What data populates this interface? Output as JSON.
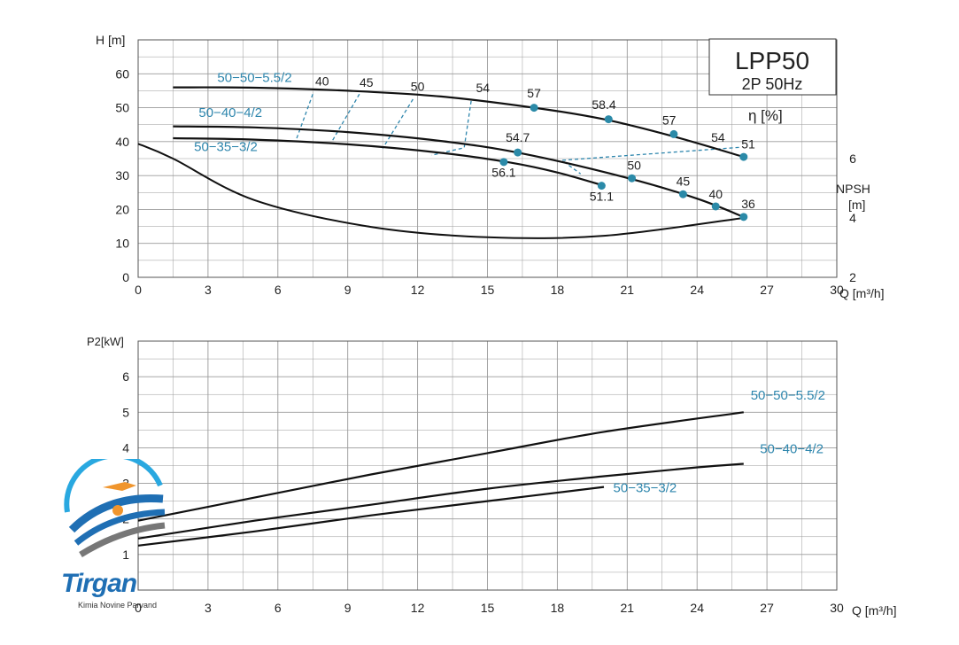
{
  "colors": {
    "curve": "#111111",
    "label": "#2e86ad",
    "grid": "#9a9a9a",
    "dot": "#2b8aa8",
    "efficiency_line": "#2e86ad"
  },
  "chart_data": [
    {
      "type": "line",
      "title": "LPP50",
      "subtitle": "2P  50Hz",
      "ylabel": "H [m]",
      "y2label_efficiency": "η [%]",
      "y3label": "NPSH",
      "y3unit": "[m]",
      "xlabel": "Q [m³/h]",
      "xlim": [
        0,
        30
      ],
      "ylim": [
        0,
        70
      ],
      "xticks": [
        "0",
        "3",
        "6",
        "9",
        "12",
        "15",
        "18",
        "21",
        "24",
        "27",
        "30"
      ],
      "yticks": [
        "0",
        "10",
        "20",
        "30",
        "40",
        "50",
        "60"
      ],
      "npsh_ticks": [
        "2",
        "4",
        "6"
      ],
      "npsh_lim": [
        2,
        10
      ],
      "grid": true,
      "series": [
        {
          "name": "50−50−5.5/2",
          "x": [
            1.5,
            5,
            9,
            13,
            17,
            20,
            23,
            26
          ],
          "y": [
            56.0,
            55.9,
            55.0,
            53.3,
            50.0,
            46.6,
            41.5,
            35.5
          ]
        },
        {
          "name": "50−40−4/2",
          "x": [
            1.5,
            5,
            9,
            13,
            16.5,
            21,
            24,
            26
          ],
          "y": [
            44.5,
            44.2,
            42.8,
            40.2,
            36.5,
            29.3,
            23.2,
            17.8
          ]
        },
        {
          "name": "50−35−3/2",
          "x": [
            1.5,
            5,
            9,
            13,
            16,
            18,
            20
          ],
          "y": [
            41.0,
            40.6,
            39.2,
            36.7,
            33.8,
            30.9,
            27.0
          ]
        }
      ],
      "npsh_curve": {
        "x": [
          0,
          1.5,
          5,
          10,
          15,
          20,
          26
        ],
        "y": [
          6.5,
          6.0,
          4.6,
          3.7,
          3.35,
          3.4,
          4.0
        ]
      },
      "efficiency_points": [
        {
          "series": "50−50−5.5/2",
          "label": "57",
          "x": 17.0,
          "y": 50.0
        },
        {
          "series": "50−50−5.5/2",
          "label": "58.4",
          "x": 20.2,
          "y": 46.6
        },
        {
          "series": "50−50−5.5/2",
          "label": "57",
          "x": 23.0,
          "y": 42.2
        },
        {
          "series": "50−50−5.5/2",
          "label": "51",
          "x": 26.0,
          "y": 35.5
        },
        {
          "series": "50−40−4/2",
          "label": "54.7",
          "x": 16.3,
          "y": 36.8
        },
        {
          "series": "50−40−4/2",
          "label": "50",
          "x": 21.2,
          "y": 29.2
        },
        {
          "series": "50−40−4/2",
          "label": "45",
          "x": 23.4,
          "y": 24.5
        },
        {
          "series": "50−40−4/2",
          "label": "40",
          "x": 24.8,
          "y": 20.9
        },
        {
          "series": "50−40−4/2",
          "label": "36",
          "x": 26.0,
          "y": 17.8
        },
        {
          "series": "50−35−3/2",
          "label": "56.1",
          "x": 15.7,
          "y": 34.0
        },
        {
          "series": "50−35−3/2",
          "label": "51.1",
          "x": 19.9,
          "y": 27.0
        }
      ],
      "efficiency_isolines": [
        {
          "label": "40",
          "x": [
            7.5,
            6.8
          ],
          "y": [
            54,
            40.8
          ]
        },
        {
          "label": "45",
          "x": [
            9.5,
            8.3
          ],
          "y": [
            54,
            39.8
          ]
        },
        {
          "label": "50",
          "x": [
            11.8,
            10.5
          ],
          "y": [
            52.5,
            38.0
          ]
        },
        {
          "label": "54",
          "x": [
            14.3,
            14.0,
            12.6
          ],
          "y": [
            52,
            38.2,
            36.0
          ]
        },
        {
          "label": "54",
          "x": [
            25.8,
            18.2,
            19.0
          ],
          "y": [
            38.3,
            34.5,
            30.5
          ]
        }
      ],
      "isoline_labels": [
        {
          "text": "40",
          "x": 7.9,
          "y": 56.6
        },
        {
          "text": "45",
          "x": 9.8,
          "y": 56.1
        },
        {
          "text": "50",
          "x": 12.0,
          "y": 55.0
        },
        {
          "text": "54",
          "x": 14.8,
          "y": 54.6
        },
        {
          "text": "54",
          "x": 24.9,
          "y": 40.0
        }
      ],
      "series_labels": [
        {
          "text": "50−50−5.5/2",
          "x": 3.4,
          "y": 57.6
        },
        {
          "text": "50−40−4/2",
          "x": 2.6,
          "y": 47.3
        },
        {
          "text": "50−35−3/2",
          "x": 2.4,
          "y": 37.2
        }
      ],
      "point_labels": [
        {
          "text": "57",
          "x": 17.0,
          "y": 53.0
        },
        {
          "text": "58.4",
          "x": 20.0,
          "y": 49.6
        },
        {
          "text": "57",
          "x": 22.8,
          "y": 45.0
        },
        {
          "text": "51",
          "x": 26.2,
          "y": 38.0
        },
        {
          "text": "54.7",
          "x": 16.3,
          "y": 40.0
        },
        {
          "text": "50",
          "x": 21.3,
          "y": 31.8
        },
        {
          "text": "45",
          "x": 23.4,
          "y": 27.0
        },
        {
          "text": "40",
          "x": 24.8,
          "y": 23.2
        },
        {
          "text": "36",
          "x": 26.2,
          "y": 20.4
        },
        {
          "text": "56.1",
          "x": 15.7,
          "y": 29.6
        },
        {
          "text": "51.1",
          "x": 19.9,
          "y": 22.6
        }
      ]
    },
    {
      "type": "line",
      "ylabel": "P2[kW]",
      "xlabel": "Q [m³/h]",
      "xlim": [
        0,
        30
      ],
      "ylim": [
        0,
        7
      ],
      "xticks": [
        "0",
        "3",
        "6",
        "9",
        "12",
        "15",
        "18",
        "21",
        "24",
        "27",
        "30"
      ],
      "yticks": [
        "1",
        "2",
        "3",
        "4",
        "5",
        "6"
      ],
      "grid": true,
      "series": [
        {
          "name": "50−50−5.5/2",
          "x": [
            0,
            5,
            10,
            15,
            20,
            26
          ],
          "y": [
            1.95,
            2.6,
            3.25,
            3.85,
            4.45,
            5.0
          ]
        },
        {
          "name": "50−40−4/2",
          "x": [
            0,
            5,
            10,
            15,
            20,
            24,
            26
          ],
          "y": [
            1.45,
            1.95,
            2.4,
            2.85,
            3.2,
            3.45,
            3.55
          ]
        },
        {
          "name": "50−35−3/2",
          "x": [
            0,
            5,
            10,
            15,
            20
          ],
          "y": [
            1.25,
            1.65,
            2.1,
            2.5,
            2.9
          ]
        }
      ],
      "series_labels": [
        {
          "text": "50−50−5.5/2",
          "x": 26.3,
          "y": 5.35
        },
        {
          "text": "50−40−4/2",
          "x": 26.7,
          "y": 3.85
        },
        {
          "text": "50−35−3/2",
          "x": 20.4,
          "y": 2.75
        }
      ]
    }
  ],
  "logo": {
    "name": "Tirgan",
    "tagline": "Kimia Novine Parvand"
  }
}
